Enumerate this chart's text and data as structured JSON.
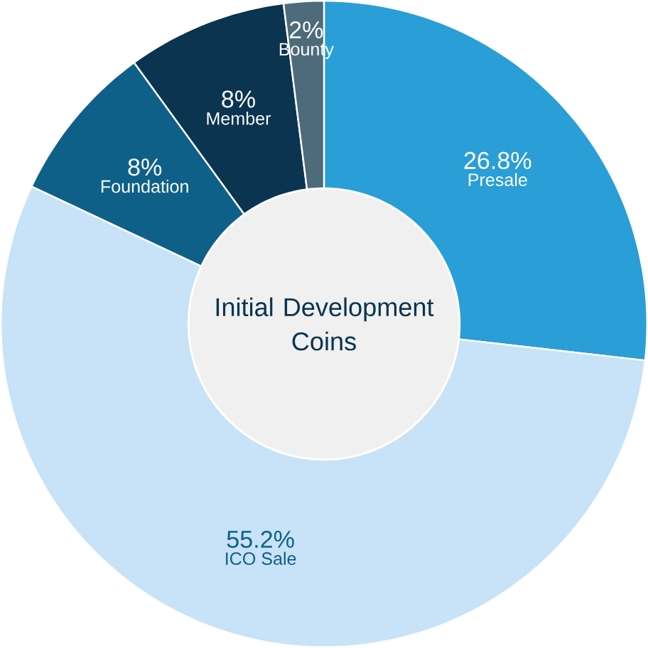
{
  "chart_data": {
    "type": "donut",
    "title": "Initial Development Coins",
    "categories": [
      "Presale",
      "ICO Sale",
      "Foundation",
      "Member",
      "Bounty"
    ],
    "values": [
      26.8,
      55.2,
      8,
      8,
      2
    ],
    "value_labels": [
      "26.8%",
      "55.2%",
      "8%",
      "8%",
      "2%"
    ],
    "colors": [
      "#2a9ed6",
      "#c8e2f7",
      "#0f6088",
      "#0a3450",
      "#4d6b7b"
    ]
  }
}
